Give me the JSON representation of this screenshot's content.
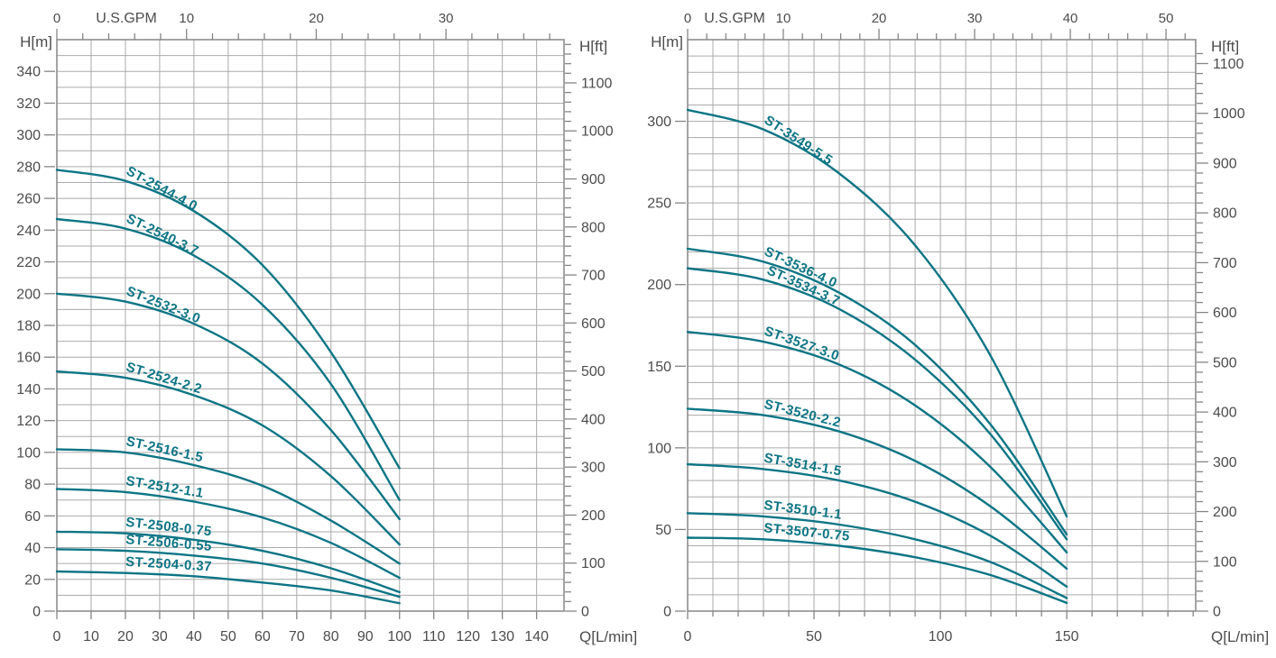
{
  "page": {
    "background": "#ffffff"
  },
  "style": {
    "curve_color": "#0d7585",
    "curve_label_color": "#0d7585",
    "grid_color": "#aaaaaa",
    "frame_color": "#858585",
    "tick_color": "#858585",
    "text_color": "#4c4c4c"
  },
  "chart_data": [
    {
      "type": "line",
      "id": "left-chart",
      "x_axis_bottom": {
        "label": "Q[L/min]",
        "min": 0,
        "max": 148,
        "grid_step": 10,
        "tick_labels": [
          0,
          10,
          20,
          30,
          40,
          50,
          60,
          70,
          80,
          90,
          100,
          110,
          120,
          130,
          140
        ]
      },
      "x_axis_top": {
        "label": "U.S.GPM",
        "lmin_per_gpm": 3.785,
        "minor_step": 2,
        "major_step": 10,
        "tick_labels": [
          0,
          10,
          20,
          30
        ]
      },
      "y_axis_left": {
        "label": "H[m]",
        "min": 0,
        "max": 360,
        "grid_step": 10,
        "tick_labels": [
          0,
          20,
          40,
          60,
          80,
          100,
          120,
          140,
          160,
          180,
          200,
          220,
          240,
          260,
          280,
          300,
          320,
          340
        ]
      },
      "y_axis_right": {
        "label": "H[ft]",
        "max_equiv": 1190,
        "minor_step": 20,
        "label_step": 100,
        "tick_labels": [
          0,
          100,
          200,
          300,
          400,
          500,
          600,
          700,
          800,
          900,
          1000,
          1100
        ]
      },
      "series_label_q": 20,
      "series_label_run": 28,
      "series": [
        {
          "name": "ST-2544-4.0",
          "points": [
            [
              0,
              278
            ],
            [
              20,
              271
            ],
            [
              40,
              252
            ],
            [
              60,
              218
            ],
            [
              80,
              163
            ],
            [
              100,
              90
            ]
          ]
        },
        {
          "name": "ST-2540-3.7",
          "points": [
            [
              0,
              247
            ],
            [
              20,
              241
            ],
            [
              40,
              224
            ],
            [
              60,
              193
            ],
            [
              80,
              143
            ],
            [
              100,
              70
            ]
          ]
        },
        {
          "name": "ST-2532-3.0",
          "points": [
            [
              0,
              200
            ],
            [
              20,
              195
            ],
            [
              40,
              181
            ],
            [
              60,
              156
            ],
            [
              80,
              114
            ],
            [
              100,
              58
            ]
          ]
        },
        {
          "name": "ST-2524-2.2",
          "points": [
            [
              0,
              151
            ],
            [
              20,
              147
            ],
            [
              40,
              136
            ],
            [
              60,
              117
            ],
            [
              80,
              85
            ],
            [
              100,
              42
            ]
          ]
        },
        {
          "name": "ST-2516-1.5",
          "points": [
            [
              0,
              102
            ],
            [
              20,
              100
            ],
            [
              40,
              92
            ],
            [
              60,
              79
            ],
            [
              80,
              57
            ],
            [
              100,
              30
            ]
          ]
        },
        {
          "name": "ST-2512-1.1",
          "points": [
            [
              0,
              77
            ],
            [
              20,
              75
            ],
            [
              40,
              69
            ],
            [
              60,
              59
            ],
            [
              80,
              43
            ],
            [
              100,
              21
            ]
          ]
        },
        {
          "name": "ST-2508-0.75",
          "points": [
            [
              0,
              50
            ],
            [
              20,
              49
            ],
            [
              40,
              45
            ],
            [
              60,
              38
            ],
            [
              80,
              27
            ],
            [
              100,
              12
            ]
          ]
        },
        {
          "name": "ST-2506-0.55",
          "points": [
            [
              0,
              39
            ],
            [
              20,
              38
            ],
            [
              40,
              35
            ],
            [
              60,
              30
            ],
            [
              80,
              21
            ],
            [
              100,
              9
            ]
          ]
        },
        {
          "name": "ST-2504-0.37",
          "points": [
            [
              0,
              25
            ],
            [
              20,
              24
            ],
            [
              40,
              22
            ],
            [
              60,
              18
            ],
            [
              80,
              13
            ],
            [
              100,
              5
            ]
          ]
        }
      ]
    },
    {
      "type": "line",
      "id": "right-chart",
      "x_axis_bottom": {
        "label": "Q[L/min]",
        "min": 0,
        "max": 201,
        "grid_step": 10,
        "tick_labels": [
          0,
          50,
          100,
          150
        ]
      },
      "x_axis_top": {
        "label": "U.S.GPM",
        "lmin_per_gpm": 3.785,
        "minor_step": 2,
        "major_step": 10,
        "tick_labels": [
          0,
          10,
          20,
          30,
          40,
          50
        ]
      },
      "y_axis_left": {
        "label": "H[m]",
        "min": 0,
        "max": 350,
        "grid_step": 10,
        "tick_labels": [
          0,
          50,
          100,
          150,
          200,
          250,
          300
        ]
      },
      "y_axis_right": {
        "label": "H[ft]",
        "max_equiv": 1148,
        "minor_step": 20,
        "label_step": 100,
        "tick_labels": [
          0,
          100,
          200,
          300,
          400,
          500,
          600,
          700,
          800,
          900,
          1000,
          1100
        ]
      },
      "series_label_q": 30,
      "series_label_run": 38,
      "series": [
        {
          "name": "ST-3549-5.5",
          "points": [
            [
              0,
              307
            ],
            [
              30,
              295
            ],
            [
              60,
              268
            ],
            [
              90,
              224
            ],
            [
              120,
              156
            ],
            [
              150,
              58
            ]
          ]
        },
        {
          "name": "ST-3536-4.0",
          "points": [
            [
              0,
              222
            ],
            [
              30,
              214
            ],
            [
              60,
              195
            ],
            [
              90,
              163
            ],
            [
              120,
              114
            ],
            [
              150,
              47
            ]
          ]
        },
        {
          "name": "ST-3534-3.7",
          "label_q": 31,
          "points": [
            [
              0,
              210
            ],
            [
              30,
              203
            ],
            [
              60,
              185
            ],
            [
              90,
              154
            ],
            [
              120,
              108
            ],
            [
              150,
              44
            ]
          ]
        },
        {
          "name": "ST-3527-3.0",
          "points": [
            [
              0,
              171
            ],
            [
              30,
              165
            ],
            [
              60,
              151
            ],
            [
              90,
              126
            ],
            [
              120,
              88
            ],
            [
              150,
              36
            ]
          ]
        },
        {
          "name": "ST-3520-2.2",
          "points": [
            [
              0,
              124
            ],
            [
              30,
              120
            ],
            [
              60,
              110
            ],
            [
              90,
              92
            ],
            [
              120,
              64
            ],
            [
              150,
              26
            ]
          ]
        },
        {
          "name": "ST-3514-1.5",
          "points": [
            [
              0,
              90
            ],
            [
              30,
              87
            ],
            [
              60,
              80
            ],
            [
              90,
              67
            ],
            [
              120,
              46
            ],
            [
              150,
              15
            ]
          ]
        },
        {
          "name": "ST-3510-1.1",
          "points": [
            [
              0,
              60
            ],
            [
              30,
              58
            ],
            [
              60,
              53
            ],
            [
              90,
              44
            ],
            [
              120,
              30
            ],
            [
              150,
              8
            ]
          ]
        },
        {
          "name": "ST-3507-0.75",
          "points": [
            [
              0,
              45
            ],
            [
              30,
              44
            ],
            [
              60,
              40
            ],
            [
              90,
              33
            ],
            [
              120,
              22
            ],
            [
              150,
              5
            ]
          ]
        }
      ]
    }
  ]
}
